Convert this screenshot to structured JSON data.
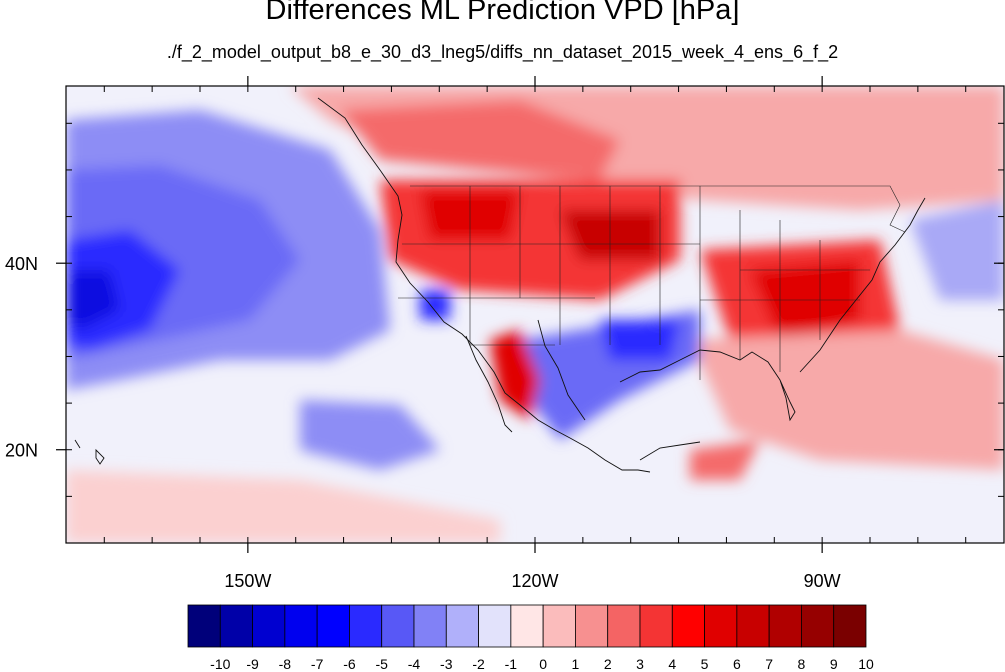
{
  "title": "Differences ML Prediction VPD [hPa]",
  "subtitle": "./f_2_model_output_b8_e_30_d3_lneg5/diffs_nn_dataset_2015_week_4_ens_6_f_2",
  "map": {
    "projection": "cylindrical equidistant",
    "lon_range": [
      -169,
      -71
    ],
    "lat_range": [
      10,
      59
    ],
    "lon_ticks": [
      {
        "label": "150W",
        "lon": -150
      },
      {
        "label": "120W",
        "lon": -120
      },
      {
        "label": "90W",
        "lon": -90
      }
    ],
    "lat_ticks": [
      {
        "label": "40N",
        "lat": 40
      },
      {
        "label": "20N",
        "lat": 20
      }
    ]
  },
  "colorbar": {
    "labels": [
      "-10",
      "-9",
      "-8",
      "-7",
      "-6",
      "-5",
      "-4",
      "-3",
      "-2",
      "-1",
      "0",
      "1",
      "2",
      "3",
      "4",
      "5",
      "6",
      "7",
      "8",
      "9",
      "10"
    ],
    "colors": [
      "#00007a",
      "#0000a8",
      "#0000d0",
      "#0000ef",
      "#0000ff",
      "#2a2aff",
      "#5858f6",
      "#8181f6",
      "#b0b0fa",
      "#e2e2fb",
      "#ffe6e6",
      "#fbbcbc",
      "#f79090",
      "#f46464",
      "#f43434",
      "#ff0000",
      "#e00000",
      "#c80000",
      "#b00000",
      "#960000",
      "#7a0000"
    ]
  }
}
